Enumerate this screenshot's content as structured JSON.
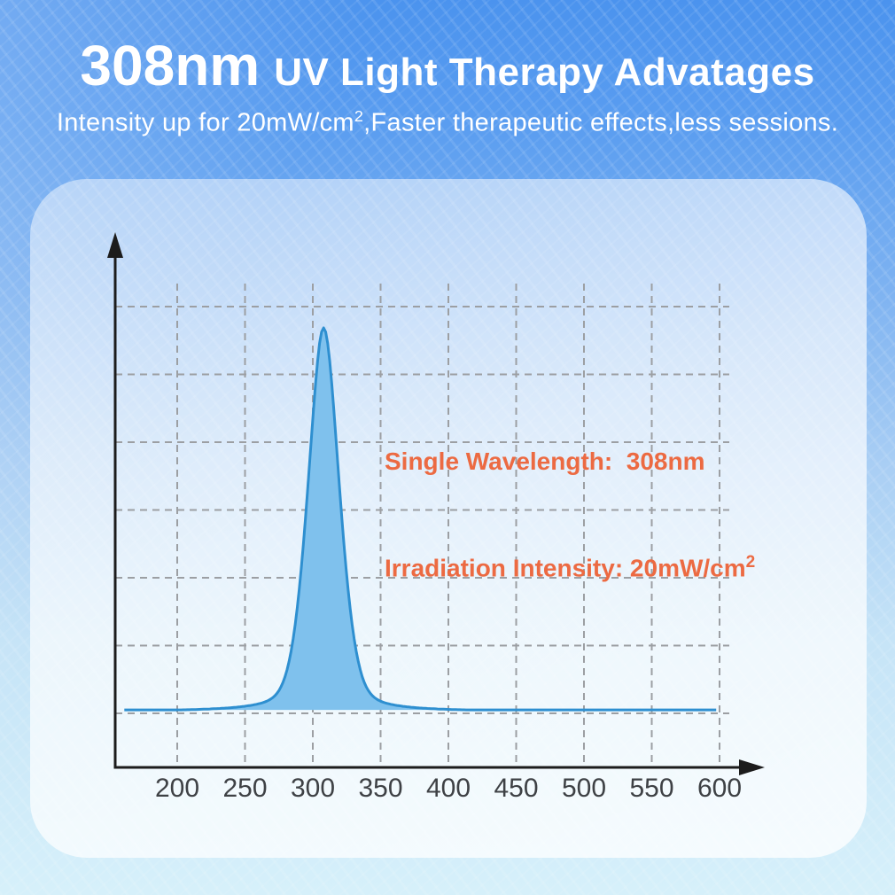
{
  "header": {
    "highlight": "308nm",
    "title_rest": "UV Light Therapy Advatages",
    "subtitle_prefix": "Intensity up for 20mW/cm",
    "subtitle_sup": "2",
    "subtitle_suffix": ",Faster therapeutic effects,less sessions."
  },
  "annotation": {
    "line1": "Single Wavelength:  308nm",
    "line2": "Irradiation Intensity: 20mW/cm",
    "line2_sup": "2"
  },
  "colors": {
    "accent_orange": "#ec6a42",
    "peak_fill": "#7fc1ed",
    "peak_stroke": "#2e8fd0",
    "grid": "#9c9fa3",
    "axis": "#1c1c1c",
    "tick_text": "#3e4145",
    "bg_top": "#4b93ee",
    "bg_bottom": "#d6f0fa"
  },
  "chart_data": {
    "type": "area",
    "title": "",
    "xlabel": "",
    "ylabel": "",
    "grid": true,
    "legend": false,
    "x_ticks": [
      200,
      250,
      300,
      350,
      400,
      450,
      500,
      550,
      600
    ],
    "x_range_nm": [
      161,
      598
    ],
    "peak": {
      "center_nm": 308,
      "fwhm_nm": 27,
      "gauss_sigma_nm": 12,
      "lorentz_gamma_nm": 12,
      "gauss_fraction": 0.66,
      "baseline_level": 0.0045
    },
    "points": [
      [
        161,
        0.005
      ],
      [
        250,
        0.01
      ],
      [
        270,
        0.02
      ],
      [
        282,
        0.06
      ],
      [
        290,
        0.2
      ],
      [
        296,
        0.42
      ],
      [
        300,
        0.63
      ],
      [
        304,
        0.93
      ],
      [
        308,
        1.0
      ],
      [
        312,
        0.93
      ],
      [
        316,
        0.63
      ],
      [
        320,
        0.42
      ],
      [
        326,
        0.2
      ],
      [
        334,
        0.06
      ],
      [
        346,
        0.02
      ],
      [
        358,
        0.01
      ],
      [
        400,
        0.005
      ],
      [
        598,
        0.005
      ]
    ]
  }
}
